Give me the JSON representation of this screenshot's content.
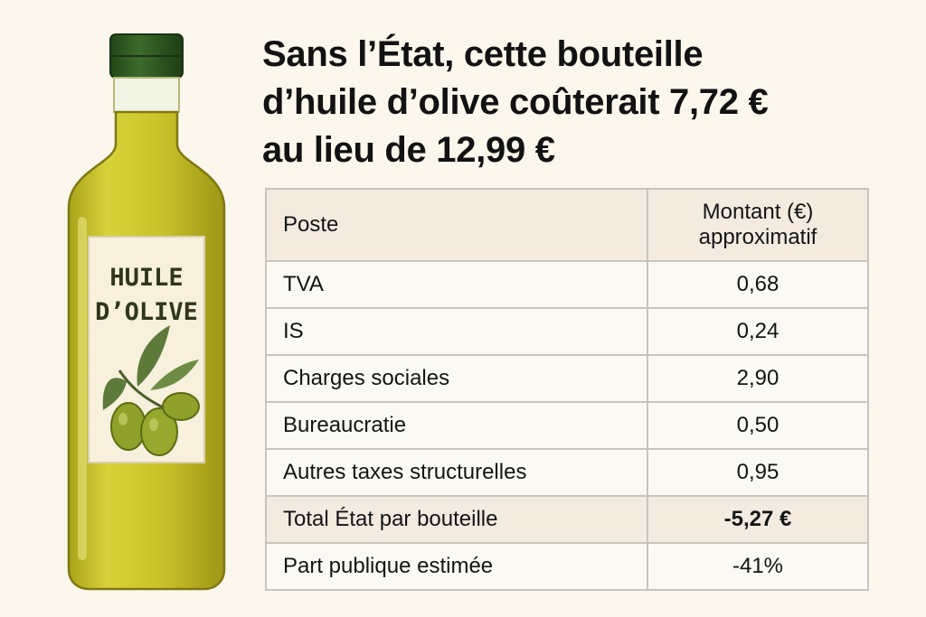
{
  "headline": {
    "line1": "Sans l’État, cette bouteille",
    "line2": "d’huile d’olive coûterait 7,72 €",
    "line3": "au lieu de 12,99 €"
  },
  "bottle": {
    "label_line1": "HUILE",
    "label_line2": "D’OLIVE",
    "colors": {
      "cap": "#2f5a22",
      "oil": "#c9c22a",
      "label": "#f6f0dc",
      "olive": "#8fa12a",
      "leaf": "#5d7a3a"
    }
  },
  "table": {
    "header": {
      "poste": "Poste",
      "montant_line1": "Montant (€)",
      "montant_line2": "approximatif"
    },
    "rows": [
      {
        "poste": "TVA",
        "montant": "0,68"
      },
      {
        "poste": "IS",
        "montant": "0,24"
      },
      {
        "poste": "Charges sociales",
        "montant": "2,90"
      },
      {
        "poste": "Bureaucratie",
        "montant": "0,50"
      },
      {
        "poste": "Autres taxes structurelles",
        "montant": "0,95"
      },
      {
        "poste": "Total État par bouteille",
        "montant": "-5,27 €"
      },
      {
        "poste": "Part publique estimée",
        "montant": "-41%"
      }
    ]
  }
}
